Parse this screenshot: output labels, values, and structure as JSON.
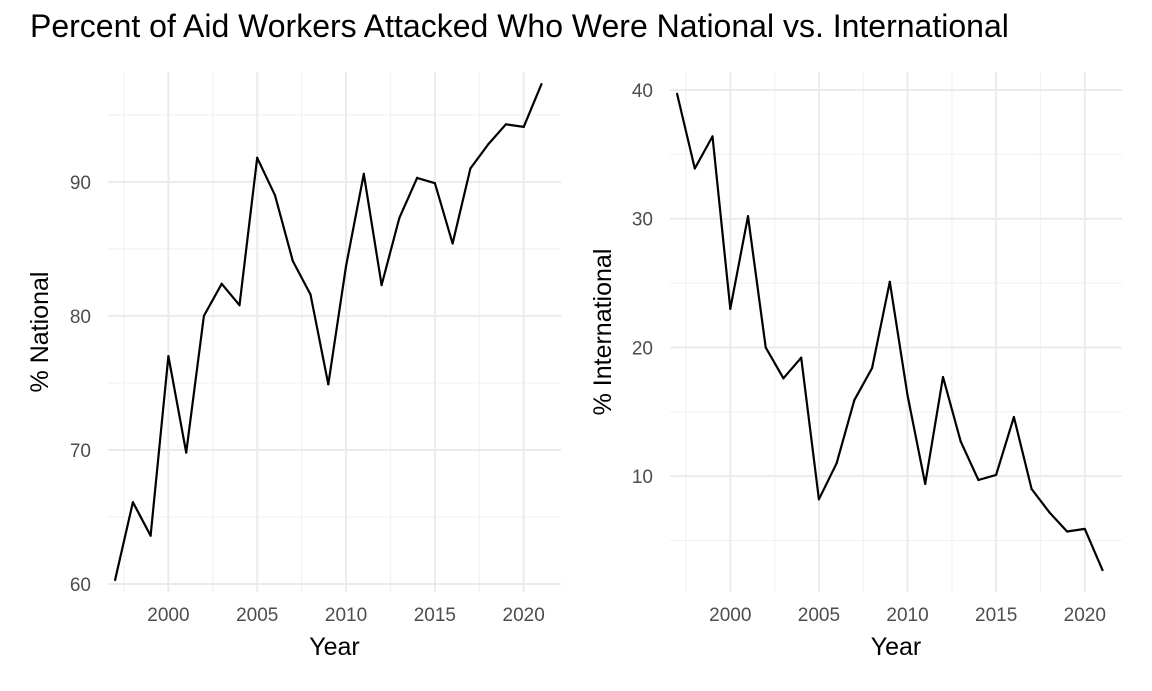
{
  "figure": {
    "title": "Percent of Aid Workers Attacked Who Were National vs. International"
  },
  "chart_data": [
    {
      "type": "line",
      "title": "",
      "xlabel": "Year",
      "ylabel": "% National",
      "xlim": [
        1996.6,
        2022.1
      ],
      "ylim": [
        59.4,
        98.2
      ],
      "xticks": [
        2000,
        2005,
        2010,
        2015,
        2020
      ],
      "yticks": [
        60,
        70,
        80,
        90
      ],
      "grid": true,
      "x": [
        1997,
        1998,
        1999,
        2000,
        2001,
        2002,
        2003,
        2004,
        2005,
        2006,
        2007,
        2008,
        2009,
        2010,
        2011,
        2012,
        2013,
        2014,
        2015,
        2016,
        2017,
        2018,
        2019,
        2020,
        2021
      ],
      "series": [
        {
          "values": [
            60.3,
            66.1,
            63.6,
            77.0,
            69.8,
            80.0,
            82.4,
            80.8,
            91.8,
            89.0,
            84.1,
            81.6,
            74.9,
            83.7,
            90.6,
            82.3,
            87.3,
            90.3,
            89.9,
            85.4,
            91.0,
            92.8,
            94.3,
            94.1,
            97.3
          ]
        }
      ]
    },
    {
      "type": "line",
      "title": "",
      "xlabel": "Year",
      "ylabel": "% International",
      "xlim": [
        1996.6,
        2022.1
      ],
      "ylim": [
        1.0,
        41.4
      ],
      "xticks": [
        2000,
        2005,
        2010,
        2015,
        2020
      ],
      "yticks": [
        10,
        20,
        30,
        40
      ],
      "grid": true,
      "x": [
        1997,
        1998,
        1999,
        2000,
        2001,
        2002,
        2003,
        2004,
        2005,
        2006,
        2007,
        2008,
        2009,
        2010,
        2011,
        2012,
        2013,
        2014,
        2015,
        2016,
        2017,
        2018,
        2019,
        2020,
        2021
      ],
      "series": [
        {
          "values": [
            39.7,
            33.9,
            36.4,
            23.0,
            30.2,
            20.0,
            17.6,
            19.2,
            8.2,
            11.0,
            15.9,
            18.4,
            25.1,
            16.3,
            9.4,
            17.7,
            12.7,
            9.7,
            10.1,
            14.6,
            9.0,
            7.2,
            5.7,
            5.9,
            2.7
          ]
        }
      ]
    }
  ]
}
